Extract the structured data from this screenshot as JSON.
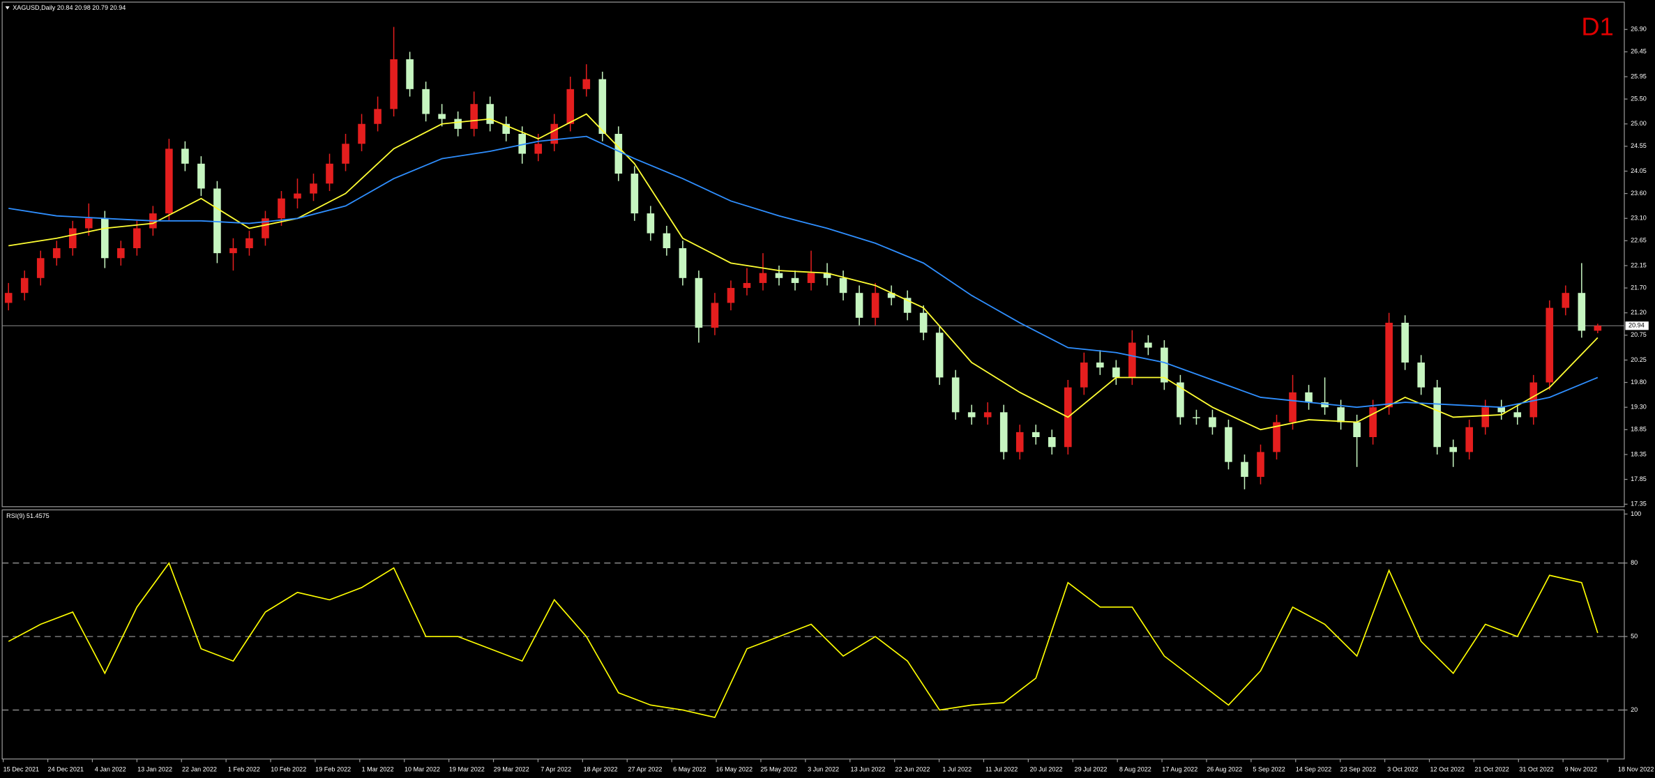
{
  "chart_data": {
    "type": "candlestick",
    "title": "XAGUSD,Daily  20.84 20.98 20.79 20.94",
    "timeframe": "D1",
    "up_color": "#e41e1e",
    "down_color": "#c6f5c0",
    "ylim": [
      17.3,
      27.45
    ],
    "yticks": [
      {
        "value": 26.9,
        "label": "26.90"
      },
      26.45,
      25.95,
      {
        "value": 25.5,
        "label": "25.50"
      },
      {
        "value": 25,
        "label": "25.00"
      },
      24.55,
      24.05,
      {
        "value": 23.6,
        "label": "23.60"
      },
      {
        "value": 23.1,
        "label": "23.10"
      },
      22.65,
      22.15,
      {
        "value": 21.7,
        "label": "21.70"
      },
      {
        "value": 21.2,
        "label": "21.20"
      },
      20.75,
      20.25,
      {
        "value": 19.8,
        "label": "19.80"
      },
      {
        "value": 19.3,
        "label": "19.30"
      },
      18.85,
      18.35,
      17.85,
      17.35
    ],
    "last_price": 20.94,
    "ohlc": [
      [
        21.4,
        21.8,
        21.25,
        21.6
      ],
      [
        21.6,
        22.05,
        21.45,
        21.9
      ],
      [
        21.9,
        22.45,
        21.75,
        22.3
      ],
      [
        22.3,
        22.65,
        22.15,
        22.5
      ],
      [
        22.5,
        23.05,
        22.35,
        22.9
      ],
      [
        22.9,
        23.4,
        22.75,
        23.1
      ],
      [
        23.1,
        23.25,
        22.1,
        22.3
      ],
      [
        22.3,
        22.65,
        22.15,
        22.5
      ],
      [
        22.5,
        23.05,
        22.35,
        22.9
      ],
      [
        22.9,
        23.35,
        22.75,
        23.2
      ],
      [
        23.2,
        24.7,
        23.05,
        24.5
      ],
      [
        24.5,
        24.65,
        24.05,
        24.2
      ],
      [
        24.2,
        24.35,
        23.55,
        23.7
      ],
      [
        23.7,
        23.85,
        22.2,
        22.4
      ],
      [
        22.4,
        22.7,
        22.05,
        22.5
      ],
      [
        22.5,
        22.85,
        22.35,
        22.7
      ],
      [
        22.7,
        23.25,
        22.55,
        23.1
      ],
      [
        23.1,
        23.65,
        22.95,
        23.5
      ],
      [
        23.5,
        23.9,
        23.3,
        23.6
      ],
      [
        23.6,
        24.0,
        23.45,
        23.8
      ],
      [
        23.8,
        24.4,
        23.65,
        24.2
      ],
      [
        24.2,
        24.8,
        24.05,
        24.6
      ],
      [
        24.6,
        25.2,
        24.45,
        25.0
      ],
      [
        25.0,
        25.55,
        24.85,
        25.3
      ],
      [
        25.3,
        26.95,
        25.15,
        26.3
      ],
      [
        26.3,
        26.45,
        25.55,
        25.7
      ],
      [
        25.7,
        25.85,
        25.05,
        25.2
      ],
      [
        25.2,
        25.4,
        24.95,
        25.1
      ],
      [
        25.1,
        25.25,
        24.75,
        24.9
      ],
      [
        24.9,
        25.65,
        24.75,
        25.4
      ],
      [
        25.4,
        25.55,
        24.85,
        25.0
      ],
      [
        25.0,
        25.15,
        24.65,
        24.8
      ],
      [
        24.8,
        24.95,
        24.2,
        24.4
      ],
      [
        24.4,
        24.8,
        24.25,
        24.6
      ],
      [
        24.6,
        25.2,
        24.45,
        25.0
      ],
      [
        25.0,
        25.95,
        24.85,
        25.7
      ],
      [
        25.7,
        26.2,
        25.55,
        25.9
      ],
      [
        25.9,
        26.05,
        24.65,
        24.8
      ],
      [
        24.8,
        24.95,
        23.85,
        24.0
      ],
      [
        24.0,
        24.15,
        23.05,
        23.2
      ],
      [
        23.2,
        23.35,
        22.65,
        22.8
      ],
      [
        22.8,
        22.95,
        22.35,
        22.5
      ],
      [
        22.5,
        22.65,
        21.75,
        21.9
      ],
      [
        21.9,
        22.05,
        20.6,
        20.9
      ],
      [
        20.9,
        21.6,
        20.75,
        21.4
      ],
      [
        21.4,
        21.85,
        21.25,
        21.7
      ],
      [
        21.7,
        22.1,
        21.55,
        21.8
      ],
      [
        21.8,
        22.4,
        21.65,
        22.0
      ],
      [
        22.0,
        22.15,
        21.75,
        21.9
      ],
      [
        21.9,
        22.05,
        21.65,
        21.8
      ],
      [
        21.8,
        22.45,
        21.65,
        22.0
      ],
      [
        22.0,
        22.2,
        21.75,
        21.9
      ],
      [
        21.9,
        22.05,
        21.45,
        21.6
      ],
      [
        21.6,
        21.75,
        20.95,
        21.1
      ],
      [
        21.1,
        21.8,
        20.95,
        21.6
      ],
      [
        21.6,
        21.75,
        21.35,
        21.5
      ],
      [
        21.5,
        21.65,
        21.05,
        21.2
      ],
      [
        21.2,
        21.35,
        20.65,
        20.8
      ],
      [
        20.8,
        20.95,
        19.75,
        19.9
      ],
      [
        19.9,
        20.05,
        19.05,
        19.2
      ],
      [
        19.2,
        19.35,
        18.95,
        19.1
      ],
      [
        19.1,
        19.4,
        18.95,
        19.2
      ],
      [
        19.2,
        19.35,
        18.25,
        18.4
      ],
      [
        18.4,
        18.95,
        18.25,
        18.8
      ],
      [
        18.8,
        18.95,
        18.55,
        18.7
      ],
      [
        18.7,
        18.85,
        18.35,
        18.5
      ],
      [
        18.5,
        19.85,
        18.35,
        19.7
      ],
      [
        19.7,
        20.4,
        19.55,
        20.2
      ],
      [
        20.2,
        20.45,
        19.95,
        20.1
      ],
      [
        20.1,
        20.25,
        19.75,
        19.9
      ],
      [
        19.9,
        20.85,
        19.75,
        20.6
      ],
      [
        20.6,
        20.75,
        20.35,
        20.5
      ],
      [
        20.5,
        20.65,
        19.65,
        19.8
      ],
      [
        19.8,
        19.95,
        18.95,
        19.1
      ],
      [
        19.1,
        19.25,
        18.95,
        19.1
      ],
      [
        19.1,
        19.25,
        18.75,
        18.9
      ],
      [
        18.9,
        19.05,
        18.05,
        18.2
      ],
      [
        18.2,
        18.35,
        17.65,
        17.9
      ],
      [
        17.9,
        18.55,
        17.75,
        18.4
      ],
      [
        18.4,
        19.15,
        18.25,
        19.0
      ],
      [
        19.0,
        19.95,
        18.85,
        19.6
      ],
      [
        19.6,
        19.75,
        19.25,
        19.4
      ],
      [
        19.4,
        19.9,
        19.15,
        19.3
      ],
      [
        19.3,
        19.45,
        18.85,
        19.0
      ],
      [
        19.0,
        19.15,
        18.1,
        18.7
      ],
      [
        18.7,
        19.45,
        18.55,
        19.3
      ],
      [
        19.3,
        21.2,
        19.15,
        21.0
      ],
      [
        21.0,
        21.15,
        20.05,
        20.2
      ],
      [
        20.2,
        20.35,
        19.55,
        19.7
      ],
      [
        19.7,
        19.85,
        18.35,
        18.5
      ],
      [
        18.5,
        18.65,
        18.1,
        18.4
      ],
      [
        18.4,
        19.05,
        18.25,
        18.9
      ],
      [
        18.9,
        19.45,
        18.75,
        19.3
      ],
      [
        19.3,
        19.45,
        19.05,
        19.2
      ],
      [
        19.2,
        19.35,
        18.95,
        19.1
      ],
      [
        19.1,
        19.95,
        18.95,
        19.8
      ],
      [
        19.8,
        21.45,
        19.65,
        21.3
      ],
      [
        21.3,
        21.75,
        21.15,
        21.6
      ],
      [
        21.6,
        22.2,
        20.7,
        20.84
      ],
      [
        20.84,
        20.98,
        20.79,
        20.94
      ]
    ],
    "moving_averages": [
      {
        "color": "#ffff33",
        "x": [
          0,
          3,
          6,
          9,
          12,
          15,
          18,
          21,
          24,
          27,
          30,
          33,
          36,
          39,
          42,
          45,
          48,
          51,
          54,
          57,
          60,
          63,
          66,
          69,
          72,
          75,
          78,
          81,
          84,
          87,
          90,
          93,
          96,
          99
        ],
        "values": [
          22.55,
          22.7,
          22.9,
          23.0,
          23.5,
          22.9,
          23.1,
          23.6,
          24.5,
          25.0,
          25.1,
          24.7,
          25.2,
          24.2,
          22.7,
          22.2,
          22.05,
          22.0,
          21.75,
          21.3,
          20.2,
          19.6,
          19.1,
          19.9,
          19.9,
          19.3,
          18.85,
          19.05,
          19.0,
          19.5,
          19.1,
          19.15,
          19.7,
          20.7
        ]
      },
      {
        "color": "#2f8fff",
        "x": [
          0,
          3,
          6,
          9,
          12,
          15,
          18,
          21,
          24,
          27,
          30,
          33,
          36,
          39,
          42,
          45,
          48,
          51,
          54,
          57,
          60,
          63,
          66,
          69,
          72,
          75,
          78,
          81,
          84,
          87,
          90,
          93,
          96,
          99
        ],
        "values": [
          23.3,
          23.15,
          23.1,
          23.05,
          23.05,
          23.0,
          23.1,
          23.35,
          23.9,
          24.3,
          24.45,
          24.65,
          24.75,
          24.3,
          23.9,
          23.45,
          23.15,
          22.9,
          22.6,
          22.2,
          21.55,
          21.0,
          20.5,
          20.4,
          20.2,
          19.85,
          19.5,
          19.4,
          19.3,
          19.4,
          19.35,
          19.3,
          19.5,
          19.9
        ]
      }
    ],
    "dates": [
      "15 Dec 2021",
      "24 Dec 2021",
      "4 Jan 2022",
      "13 Jan 2022",
      "22 Jan 2022",
      "1 Feb 2022",
      "10 Feb 2022",
      "19 Feb 2022",
      "1 Mar 2022",
      "10 Mar 2022",
      "19 Mar 2022",
      "29 Mar 2022",
      "7 Apr 2022",
      "18 Apr 2022",
      "27 Apr 2022",
      "6 May 2022",
      "16 May 2022",
      "25 May 2022",
      "3 Jun 2022",
      "13 Jun 2022",
      "22 Jun 2022",
      "1 Jul 2022",
      "11 Jul 2022",
      "20 Jul 2022",
      "29 Jul 2022",
      "8 Aug 2022",
      "17 Aug 2022",
      "26 Aug 2022",
      "5 Sep 2022",
      "14 Sep 2022",
      "23 Sep 2022",
      "3 Oct 2022",
      "12 Oct 2022",
      "21 Oct 2022",
      "31 Oct 2022",
      "9 Nov 2022",
      "18 Nov 2022"
    ],
    "rsi": {
      "title": "RSI(9) 51.4575",
      "color": "#ffff00",
      "ylim": [
        0,
        101.7
      ],
      "yticks": [
        20,
        50,
        80,
        100
      ],
      "levels": [
        20,
        50,
        80
      ],
      "x": [
        0,
        2,
        4,
        6,
        8,
        10,
        12,
        14,
        16,
        18,
        20,
        22,
        24,
        26,
        28,
        30,
        32,
        34,
        36,
        38,
        40,
        42,
        44,
        46,
        48,
        50,
        52,
        54,
        56,
        58,
        60,
        62,
        64,
        66,
        68,
        70,
        72,
        74,
        76,
        78,
        80,
        82,
        84,
        86,
        88,
        90,
        92,
        94,
        96,
        98,
        99
      ],
      "values": [
        48,
        55,
        60,
        35,
        62,
        80,
        45,
        40,
        60,
        68,
        65,
        70,
        78,
        50,
        50,
        45,
        40,
        65,
        50,
        27,
        22,
        20,
        17,
        45,
        50,
        55,
        42,
        50,
        40,
        20,
        22,
        23,
        33,
        72,
        62,
        62,
        42,
        32,
        22,
        36,
        62,
        55,
        42,
        77,
        48,
        35,
        55,
        50,
        75,
        72,
        51.4575
      ]
    }
  }
}
